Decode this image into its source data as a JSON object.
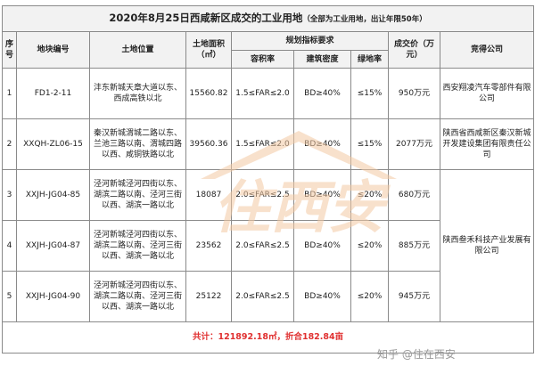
{
  "title": "2020年8月25日西咸新区成交的工业用地",
  "title_note": "（全部为工业用地，出让年限50年）",
  "headers": {
    "seq": "序号",
    "parcel": "地块编号",
    "location": "土地位置",
    "area": "土地面积（㎡）",
    "planning": "规划指标要求",
    "far": "容积率",
    "density": "建筑密度",
    "green": "绿地率",
    "price": "成交价（万元）",
    "winner": "竞得公司"
  },
  "rows": [
    {
      "seq": "1",
      "parcel": "FD1-2-11",
      "location": "沣东新城天章大道以东、西成高铁以北",
      "area": "15560.82",
      "far": "1.5≤FAR≤2.0",
      "density": "BD≥40%",
      "green": "≤15%",
      "price": "950万元"
    },
    {
      "seq": "2",
      "parcel": "XXQH-ZL06-15",
      "location": "秦汉新城渭城二路以东、兰池三路以南、渭城四路以西、咸铜铁路以北",
      "area": "39560.36",
      "far": "1.5≤FAR≤2.0",
      "density": "BD≥40%",
      "green": "≤15%",
      "price": "2077万元"
    },
    {
      "seq": "3",
      "parcel": "XXJH-JG04-85",
      "location": "泾河新城泾河四街以东、湖滨二路以南、泾河三街以西、湖滨一路以北",
      "area": "18087",
      "far": "2.0≤FAR≤2.5",
      "density": "BD≥40%",
      "green": "≤20%",
      "price": "680万元"
    },
    {
      "seq": "4",
      "parcel": "XXJH-JG04-87",
      "location": "泾河新城泾河四街以东、湖滨二路以南、泾河三街以西、湖滨一路以北",
      "area": "23562",
      "far": "2.0≤FAR≤2.5",
      "density": "BD≥40%",
      "green": "≤20%",
      "price": "885万元"
    },
    {
      "seq": "5",
      "parcel": "XXJH-JG04-90",
      "location": "泾河新城泾河四街以东、湖滨二路以南、泾河三街以西、湖滨一路以北",
      "area": "25122",
      "far": "2.0≤FAR≤2.5",
      "density": "BD≥40%",
      "green": "≤20%",
      "price": "945万元"
    }
  ],
  "winners": {
    "w1": "西安翔凌汽车零部件有限公司",
    "w2": "陕西省西咸新区秦汉新城开发建设集团有限责任公司",
    "w3": "陕西叁禾科技产业发展有限公司"
  },
  "total": "共计：121892.18㎡，折合182.84亩",
  "watermark_text": "住西安",
  "credit": "知乎 @住在西安",
  "colors": {
    "total": "#e03030",
    "watermark": "#f3c9a3",
    "header_bg": "#f2f2f2"
  }
}
